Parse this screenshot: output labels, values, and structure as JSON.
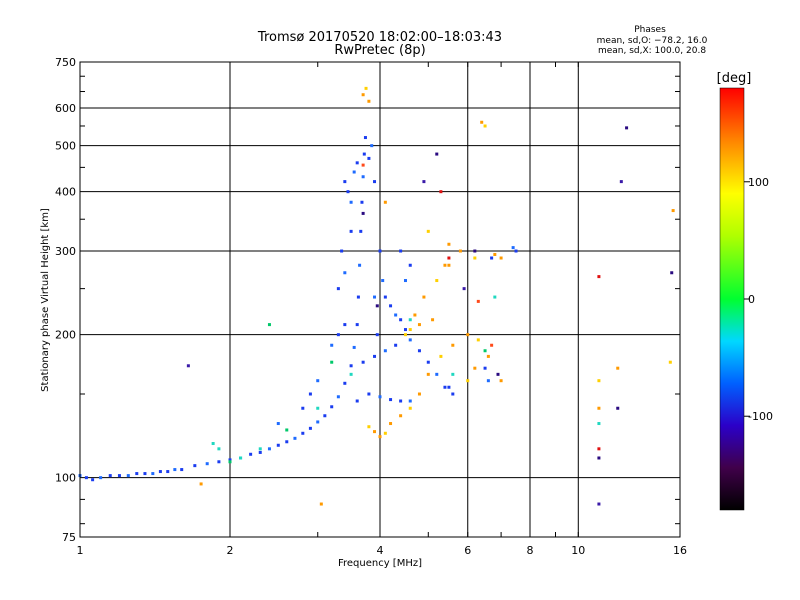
{
  "chart_data": {
    "type": "scatter",
    "title": "Tromsø 20170520 18:02:00–18:03:43",
    "subtitle": "RwPretec (8p)",
    "xlabel": "Frequency [MHz]",
    "ylabel": "Stationary phase Virtual Height [km]",
    "x_scale": "log",
    "y_scale": "log",
    "xlim": [
      1,
      16
    ],
    "ylim": [
      75,
      750
    ],
    "x_ticks": [
      1,
      2,
      4,
      6,
      8,
      10,
      16
    ],
    "y_ticks": [
      75,
      100,
      200,
      300,
      400,
      500,
      600,
      750
    ],
    "grid": true,
    "stats": {
      "heading": "Phases",
      "line1": "mean, sd,O: −78.2, 16.0",
      "line2": "mean, sd,X: 100.0, 20.8"
    },
    "colorbar": {
      "label": "[deg]",
      "min": -180,
      "max": 180,
      "ticks": [
        100,
        0,
        -100
      ]
    },
    "series": [
      {
        "phase_trend": "blue trace (about −90 to −110 deg)",
        "points": [
          [
            1.0,
            101
          ],
          [
            1.03,
            100
          ],
          [
            1.06,
            99
          ],
          [
            1.1,
            100
          ],
          [
            1.15,
            101
          ],
          [
            1.2,
            101
          ],
          [
            1.25,
            101
          ],
          [
            1.3,
            102
          ],
          [
            1.35,
            102
          ],
          [
            1.4,
            102
          ],
          [
            1.45,
            103
          ],
          [
            1.5,
            103
          ],
          [
            1.55,
            104
          ],
          [
            1.6,
            104
          ],
          [
            1.7,
            106
          ],
          [
            1.8,
            107
          ],
          [
            1.9,
            108
          ],
          [
            2.0,
            109
          ],
          [
            2.1,
            110
          ],
          [
            2.2,
            112
          ],
          [
            2.3,
            113
          ],
          [
            2.4,
            115
          ],
          [
            2.5,
            117
          ],
          [
            2.6,
            119
          ],
          [
            2.7,
            121
          ],
          [
            2.8,
            124
          ],
          [
            2.9,
            127
          ],
          [
            3.0,
            131
          ],
          [
            3.1,
            135
          ],
          [
            3.2,
            141
          ],
          [
            3.3,
            148
          ],
          [
            3.4,
            158
          ],
          [
            3.5,
            172
          ],
          [
            3.55,
            188
          ],
          [
            3.6,
            210
          ],
          [
            3.62,
            240
          ],
          [
            3.64,
            280
          ],
          [
            3.66,
            330
          ],
          [
            3.68,
            380
          ],
          [
            3.7,
            430
          ],
          [
            3.72,
            480
          ],
          [
            3.74,
            520
          ],
          [
            3.5,
            380
          ],
          [
            3.45,
            400
          ],
          [
            3.4,
            420
          ],
          [
            3.55,
            440
          ],
          [
            3.6,
            460
          ],
          [
            3.8,
            470
          ],
          [
            3.85,
            500
          ],
          [
            3.9,
            420
          ],
          [
            4.0,
            300
          ],
          [
            4.05,
            260
          ],
          [
            4.1,
            240
          ],
          [
            4.2,
            230
          ],
          [
            4.3,
            220
          ],
          [
            4.4,
            215
          ],
          [
            4.5,
            205
          ],
          [
            4.6,
            195
          ],
          [
            4.8,
            185
          ],
          [
            5.0,
            175
          ],
          [
            5.2,
            165
          ],
          [
            5.4,
            155
          ],
          [
            5.6,
            150
          ],
          [
            3.2,
            190
          ],
          [
            3.3,
            200
          ],
          [
            3.4,
            210
          ],
          [
            3.0,
            160
          ],
          [
            2.9,
            150
          ],
          [
            2.8,
            140
          ],
          [
            2.5,
            130
          ],
          [
            3.6,
            145
          ],
          [
            3.8,
            150
          ],
          [
            4.0,
            148
          ],
          [
            4.2,
            146
          ],
          [
            4.4,
            145
          ],
          [
            4.6,
            145
          ],
          [
            3.7,
            175
          ],
          [
            3.9,
            180
          ],
          [
            4.1,
            185
          ],
          [
            4.3,
            190
          ],
          [
            6.7,
            290
          ],
          [
            7.4,
            305
          ],
          [
            7.5,
            300
          ],
          [
            6.5,
            170
          ],
          [
            6.6,
            160
          ],
          [
            5.5,
            155
          ],
          [
            3.3,
            250
          ],
          [
            3.4,
            270
          ],
          [
            3.35,
            300
          ],
          [
            3.5,
            330
          ],
          [
            4.5,
            260
          ],
          [
            4.6,
            280
          ],
          [
            4.4,
            300
          ],
          [
            3.9,
            240
          ],
          [
            3.95,
            200
          ]
        ]
      },
      {
        "phase_trend": "orange/yellow trace (about +100 to +150 deg)",
        "points": [
          [
            3.8,
            128
          ],
          [
            3.9,
            125
          ],
          [
            4.0,
            122
          ],
          [
            4.1,
            124
          ],
          [
            4.2,
            130
          ],
          [
            4.4,
            135
          ],
          [
            4.6,
            140
          ],
          [
            4.8,
            150
          ],
          [
            5.0,
            165
          ],
          [
            5.3,
            180
          ],
          [
            5.6,
            190
          ],
          [
            6.0,
            200
          ],
          [
            6.3,
            195
          ],
          [
            6.6,
            180
          ],
          [
            7.0,
            160
          ],
          [
            4.5,
            200
          ],
          [
            4.7,
            220
          ],
          [
            4.9,
            240
          ],
          [
            5.2,
            260
          ],
          [
            5.5,
            280
          ],
          [
            5.8,
            300
          ],
          [
            6.2,
            290
          ],
          [
            6.8,
            295
          ],
          [
            7.0,
            290
          ],
          [
            6.5,
            550
          ],
          [
            6.4,
            560
          ],
          [
            3.7,
            640
          ],
          [
            3.75,
            660
          ],
          [
            3.8,
            620
          ],
          [
            4.1,
            380
          ],
          [
            5.0,
            330
          ],
          [
            5.5,
            310
          ],
          [
            5.4,
            280
          ],
          [
            6.0,
            160
          ],
          [
            6.2,
            170
          ],
          [
            11.0,
            140
          ],
          [
            11.0,
            160
          ],
          [
            12.0,
            170
          ],
          [
            15.5,
            365
          ],
          [
            15.3,
            175
          ],
          [
            3.05,
            88
          ],
          [
            1.75,
            97
          ],
          [
            4.6,
            205
          ],
          [
            4.8,
            210
          ],
          [
            5.1,
            215
          ]
        ]
      },
      {
        "phase_trend": "green/cyan trace (about 0 to −60 deg)",
        "points": [
          [
            2.0,
            108
          ],
          [
            2.1,
            110
          ],
          [
            1.9,
            115
          ],
          [
            2.6,
            126
          ],
          [
            2.3,
            115
          ],
          [
            3.0,
            140
          ],
          [
            3.2,
            175
          ],
          [
            3.5,
            165
          ],
          [
            4.6,
            215
          ],
          [
            6.5,
            185
          ],
          [
            6.8,
            240
          ],
          [
            11.0,
            130
          ],
          [
            2.4,
            210
          ],
          [
            1.85,
            118
          ],
          [
            5.6,
            165
          ]
        ]
      },
      {
        "phase_trend": "navy/purple trace (about −130 to −150 deg)",
        "points": [
          [
            1.65,
            172
          ],
          [
            3.95,
            230
          ],
          [
            5.2,
            480
          ],
          [
            5.9,
            250
          ],
          [
            6.2,
            300
          ],
          [
            6.9,
            165
          ],
          [
            11.0,
            88
          ],
          [
            11.0,
            110
          ],
          [
            12.5,
            545
          ],
          [
            12.2,
            420
          ],
          [
            15.4,
            270
          ],
          [
            12.0,
            140
          ],
          [
            4.9,
            420
          ],
          [
            3.7,
            360
          ]
        ]
      },
      {
        "phase_trend": "red trace (about +160 deg)",
        "points": [
          [
            3.7,
            455
          ],
          [
            5.3,
            400
          ],
          [
            5.5,
            290
          ],
          [
            6.3,
            235
          ],
          [
            11.0,
            265
          ],
          [
            11.0,
            115
          ],
          [
            6.7,
            190
          ]
        ]
      }
    ]
  }
}
